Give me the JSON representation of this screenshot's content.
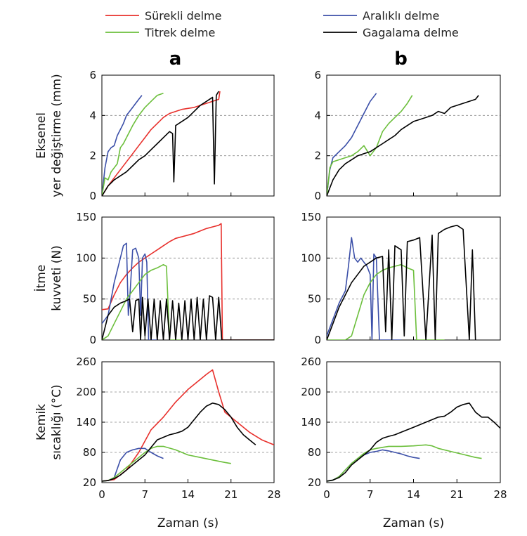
{
  "legend": [
    {
      "label": "Sürekli delme",
      "color": "#e8302c"
    },
    {
      "label": "Aralıklı delme",
      "color": "#3b4fa8"
    },
    {
      "label": "Titrek delme",
      "color": "#6cbf3c"
    },
    {
      "label": "Gagalama delme",
      "color": "#000000"
    }
  ],
  "columns": [
    {
      "label": "a",
      "xlabel": "Zaman (s)"
    },
    {
      "label": "b",
      "xlabel": "Zaman (s)"
    }
  ],
  "rows": [
    {
      "ylabel": [
        "Eksenel",
        "yer değiştirme (mm)"
      ]
    },
    {
      "ylabel": [
        "İtme",
        "kuvveti (N)"
      ]
    },
    {
      "ylabel": [
        "Kemik",
        "sıcaklığı (°C)"
      ]
    }
  ],
  "chart_data": [
    {
      "type": "line",
      "panel": "a-top",
      "xlim": [
        0,
        28
      ],
      "ylim": [
        0,
        6
      ],
      "xticks": [
        0,
        7,
        14,
        21,
        28
      ],
      "yticks": [
        0,
        2,
        4,
        6
      ],
      "grid_y": [
        2,
        4
      ],
      "series": [
        {
          "name": "Sürekli delme",
          "color": "#e8302c",
          "x": [
            0,
            1,
            2,
            3,
            4,
            5,
            6,
            7,
            8,
            9,
            10,
            11,
            12,
            13,
            14,
            15,
            16,
            17,
            18,
            19,
            19.2
          ],
          "y": [
            0,
            0.5,
            0.9,
            1.3,
            1.7,
            2.1,
            2.5,
            2.9,
            3.3,
            3.6,
            3.9,
            4.1,
            4.2,
            4.3,
            4.35,
            4.4,
            4.5,
            4.6,
            4.7,
            4.8,
            5.2
          ]
        },
        {
          "name": "Aralıklı delme",
          "color": "#3b4fa8",
          "x": [
            0,
            0.5,
            1,
            1.5,
            2,
            2.5,
            3,
            3.5,
            4,
            4.5,
            5,
            5.5,
            6,
            6.5
          ],
          "y": [
            0,
            1.4,
            2.2,
            2.4,
            2.5,
            3.0,
            3.3,
            3.6,
            4.0,
            4.2,
            4.4,
            4.6,
            4.8,
            5.0
          ]
        },
        {
          "name": "Titrek delme",
          "color": "#6cbf3c",
          "x": [
            0,
            0.5,
            1,
            1.5,
            2,
            2.5,
            3,
            3.5,
            4,
            5,
            6,
            7,
            8,
            9,
            10
          ],
          "y": [
            0,
            0.9,
            0.8,
            1.2,
            1.4,
            1.6,
            2.4,
            2.6,
            2.9,
            3.5,
            4.0,
            4.4,
            4.7,
            5.0,
            5.1
          ]
        },
        {
          "name": "Gagalama delme",
          "color": "#000000",
          "x": [
            0,
            1,
            2,
            3,
            4,
            5,
            6,
            7,
            8,
            9,
            10,
            11,
            11.5,
            11.7,
            12,
            13,
            14,
            15,
            16,
            17,
            17.5,
            18,
            18.3,
            18.6,
            19
          ],
          "y": [
            0,
            0.5,
            0.8,
            1.0,
            1.2,
            1.5,
            1.8,
            2.0,
            2.3,
            2.6,
            2.9,
            3.2,
            3.1,
            0.7,
            3.5,
            3.7,
            3.9,
            4.2,
            4.5,
            4.7,
            4.8,
            4.9,
            0.6,
            5.0,
            5.2
          ]
        }
      ]
    },
    {
      "type": "line",
      "panel": "b-top",
      "xlim": [
        0,
        28
      ],
      "ylim": [
        0,
        6
      ],
      "xticks": [
        0,
        7,
        14,
        21,
        28
      ],
      "yticks": [
        0,
        2,
        4,
        6
      ],
      "grid_y": [
        2,
        4
      ],
      "series": [
        {
          "name": "Aralıklı delme",
          "color": "#3b4fa8",
          "x": [
            0,
            0.5,
            1,
            2,
            3,
            4,
            5,
            6,
            7,
            8
          ],
          "y": [
            0,
            1.3,
            1.9,
            2.2,
            2.5,
            2.9,
            3.5,
            4.1,
            4.7,
            5.1
          ]
        },
        {
          "name": "Titrek delme",
          "color": "#6cbf3c",
          "x": [
            0,
            0.5,
            1,
            2,
            3,
            4,
            5,
            6,
            7,
            8,
            9,
            10,
            11,
            12,
            13,
            13.8
          ],
          "y": [
            0,
            1.4,
            1.7,
            1.8,
            1.9,
            2.0,
            2.2,
            2.5,
            2.0,
            2.4,
            3.2,
            3.6,
            3.9,
            4.2,
            4.6,
            5.0
          ]
        },
        {
          "name": "Gagalama delme",
          "color": "#000000",
          "x": [
            0,
            1,
            2,
            3,
            4,
            5,
            6,
            7,
            8,
            9,
            10,
            11,
            12,
            13,
            14,
            15,
            16,
            17,
            18,
            19,
            20,
            21,
            22,
            23,
            24,
            24.5
          ],
          "y": [
            0,
            0.8,
            1.3,
            1.6,
            1.8,
            2.0,
            2.1,
            2.2,
            2.4,
            2.6,
            2.8,
            3.0,
            3.3,
            3.5,
            3.7,
            3.8,
            3.9,
            4.0,
            4.2,
            4.1,
            4.4,
            4.5,
            4.6,
            4.7,
            4.8,
            5.0
          ]
        }
      ]
    },
    {
      "type": "line",
      "panel": "a-mid",
      "xlim": [
        0,
        28
      ],
      "ylim": [
        0,
        150
      ],
      "xticks": [
        0,
        7,
        14,
        21,
        28
      ],
      "yticks": [
        0,
        50,
        100,
        150
      ],
      "grid_y": [
        50,
        100
      ],
      "series": [
        {
          "name": "Sürekli delme",
          "color": "#e8302c",
          "x": [
            0,
            1,
            2,
            3,
            4,
            5,
            6,
            7,
            8,
            9,
            10,
            11,
            12,
            13,
            14,
            15,
            16,
            17,
            18,
            19,
            19.4,
            19.6,
            28
          ],
          "y": [
            37,
            38,
            55,
            70,
            80,
            88,
            95,
            100,
            105,
            110,
            115,
            120,
            124,
            126,
            128,
            130,
            133,
            136,
            138,
            140,
            142,
            0,
            0
          ]
        },
        {
          "name": "Aralıklı delme",
          "color": "#3b4fa8",
          "x": [
            0,
            1,
            2,
            3,
            3.5,
            4,
            4.3,
            4.6,
            5,
            5.5,
            6,
            6.3,
            6.6,
            7,
            7.3,
            7.6,
            8,
            9
          ],
          "y": [
            20,
            30,
            70,
            100,
            115,
            118,
            30,
            60,
            110,
            112,
            100,
            30,
            100,
            105,
            95,
            0,
            0,
            0
          ]
        },
        {
          "name": "Titrek delme",
          "color": "#6cbf3c",
          "x": [
            0,
            1,
            2,
            3,
            4,
            5,
            6,
            7,
            8,
            9,
            10,
            10.5,
            11,
            12,
            13
          ],
          "y": [
            0,
            5,
            20,
            35,
            50,
            60,
            70,
            80,
            85,
            88,
            92,
            90,
            0,
            0,
            0
          ]
        },
        {
          "name": "Gagalama delme",
          "color": "#000000",
          "x": [
            0,
            1,
            2,
            3,
            4,
            4.5,
            5,
            5.5,
            6,
            6.3,
            6.6,
            7,
            7.5,
            8,
            8.5,
            9,
            9.5,
            10,
            10.5,
            11,
            11.5,
            12,
            12.5,
            13,
            13.5,
            14,
            14.5,
            15,
            15.5,
            16,
            16.5,
            17,
            17.5,
            18,
            18.5,
            19,
            19.5,
            20,
            28
          ],
          "y": [
            0,
            30,
            40,
            45,
            48,
            50,
            10,
            48,
            50,
            0,
            52,
            5,
            50,
            0,
            50,
            0,
            48,
            0,
            50,
            0,
            48,
            0,
            45,
            0,
            48,
            0,
            50,
            0,
            52,
            0,
            50,
            0,
            54,
            52,
            0,
            52,
            0,
            0,
            0
          ]
        }
      ]
    },
    {
      "type": "line",
      "panel": "b-mid",
      "xlim": [
        0,
        28
      ],
      "ylim": [
        0,
        150
      ],
      "xticks": [
        0,
        7,
        14,
        21,
        28
      ],
      "yticks": [
        0,
        50,
        100,
        150
      ],
      "grid_y": [
        50,
        100
      ],
      "series": [
        {
          "name": "Aralıklı delme",
          "color": "#3b4fa8",
          "x": [
            0,
            1,
            2,
            3,
            3.5,
            4,
            4.5,
            5,
            5.5,
            6,
            6.5,
            7,
            7.3,
            7.6,
            8,
            8.5,
            9,
            12
          ],
          "y": [
            5,
            25,
            45,
            60,
            90,
            125,
            100,
            95,
            100,
            95,
            90,
            80,
            0,
            105,
            100,
            0,
            0,
            0
          ]
        },
        {
          "name": "Titrek delme",
          "color": "#6cbf3c",
          "x": [
            0,
            2,
            3,
            4,
            5,
            6,
            7,
            8,
            9,
            10,
            11,
            12,
            13,
            14,
            14.5,
            15,
            19
          ],
          "y": [
            0,
            0,
            0,
            5,
            30,
            55,
            70,
            80,
            85,
            88,
            90,
            92,
            88,
            85,
            0,
            0,
            0
          ]
        },
        {
          "name": "Gagalama delme",
          "color": "#000000",
          "x": [
            0,
            1,
            2,
            3,
            4,
            5,
            6,
            7,
            8,
            9,
            9.5,
            10,
            10.5,
            11,
            12,
            12.5,
            13,
            14,
            15,
            16,
            17,
            17.5,
            18,
            19,
            20,
            21,
            22,
            23,
            23.5,
            24
          ],
          "y": [
            0,
            20,
            40,
            55,
            70,
            80,
            90,
            95,
            100,
            102,
            10,
            110,
            0,
            115,
            110,
            5,
            120,
            122,
            125,
            0,
            128,
            0,
            130,
            135,
            138,
            140,
            135,
            0,
            110,
            0
          ]
        }
      ]
    },
    {
      "type": "line",
      "panel": "a-bot",
      "xlim": [
        0,
        28
      ],
      "ylim": [
        20,
        260
      ],
      "xticks": [
        0,
        7,
        14,
        21,
        28
      ],
      "yticks": [
        20,
        80,
        140,
        200,
        260
      ],
      "grid_y": [
        80,
        140,
        200
      ],
      "series": [
        {
          "name": "Sürekli delme",
          "color": "#e8302c",
          "x": [
            0,
            2,
            4,
            6,
            8,
            10,
            12,
            14,
            16,
            17,
            18,
            19,
            20,
            22,
            24,
            26,
            28
          ],
          "y": [
            23,
            26,
            45,
            80,
            125,
            150,
            180,
            205,
            225,
            235,
            244,
            200,
            160,
            140,
            120,
            105,
            95
          ]
        },
        {
          "name": "Aralıklı delme",
          "color": "#3b4fa8",
          "x": [
            0,
            1,
            2,
            3,
            4,
            5,
            6,
            7,
            8,
            9,
            10
          ],
          "y": [
            23,
            24,
            30,
            65,
            80,
            85,
            88,
            88,
            80,
            73,
            68
          ]
        },
        {
          "name": "Titrek delme",
          "color": "#6cbf3c",
          "x": [
            0,
            1,
            2,
            3,
            4,
            5,
            6,
            7,
            8,
            9,
            10,
            12,
            14,
            16,
            18,
            20,
            21
          ],
          "y": [
            23,
            24,
            30,
            40,
            50,
            60,
            70,
            80,
            88,
            92,
            92,
            85,
            75,
            70,
            65,
            60,
            58
          ]
        },
        {
          "name": "Gagalama delme",
          "color": "#000000",
          "x": [
            0,
            1,
            2,
            3,
            4,
            5,
            6,
            7,
            8,
            9,
            10,
            11,
            12,
            13,
            14,
            15,
            16,
            17,
            18,
            19,
            20,
            21,
            22,
            23,
            24,
            25
          ],
          "y": [
            23,
            24,
            28,
            35,
            45,
            55,
            65,
            75,
            90,
            105,
            110,
            115,
            118,
            122,
            130,
            145,
            160,
            172,
            178,
            175,
            165,
            150,
            130,
            115,
            105,
            95
          ]
        }
      ]
    },
    {
      "type": "line",
      "panel": "b-bot",
      "xlim": [
        0,
        28
      ],
      "ylim": [
        20,
        260
      ],
      "xticks": [
        0,
        7,
        14,
        21,
        28
      ],
      "yticks": [
        20,
        80,
        140,
        200,
        260
      ],
      "grid_y": [
        80,
        140,
        200
      ],
      "series": [
        {
          "name": "Aralıklı delme",
          "color": "#3b4fa8",
          "x": [
            0,
            1,
            2,
            3,
            4,
            5,
            6,
            7,
            8,
            9,
            10,
            11,
            12,
            13,
            14,
            15
          ],
          "y": [
            23,
            25,
            32,
            45,
            58,
            68,
            75,
            80,
            82,
            85,
            83,
            80,
            77,
            73,
            70,
            68
          ]
        },
        {
          "name": "Titrek delme",
          "color": "#6cbf3c",
          "x": [
            0,
            1,
            2,
            3,
            4,
            5,
            6,
            7,
            8,
            9,
            10,
            12,
            14,
            16,
            17,
            18,
            20,
            22,
            24,
            25
          ],
          "y": [
            23,
            25,
            32,
            45,
            58,
            68,
            78,
            85,
            88,
            90,
            92,
            92,
            93,
            95,
            93,
            88,
            82,
            76,
            70,
            68
          ]
        },
        {
          "name": "Gagalama delme",
          "color": "#000000",
          "x": [
            0,
            1,
            2,
            3,
            4,
            5,
            6,
            7,
            8,
            9,
            10,
            11,
            12,
            13,
            14,
            15,
            16,
            17,
            18,
            19,
            20,
            21,
            22,
            23,
            24,
            25,
            26,
            27,
            28
          ],
          "y": [
            23,
            25,
            30,
            40,
            55,
            65,
            75,
            85,
            100,
            108,
            112,
            115,
            120,
            125,
            130,
            135,
            140,
            145,
            150,
            152,
            160,
            170,
            175,
            178,
            160,
            150,
            150,
            140,
            128
          ]
        }
      ]
    }
  ]
}
